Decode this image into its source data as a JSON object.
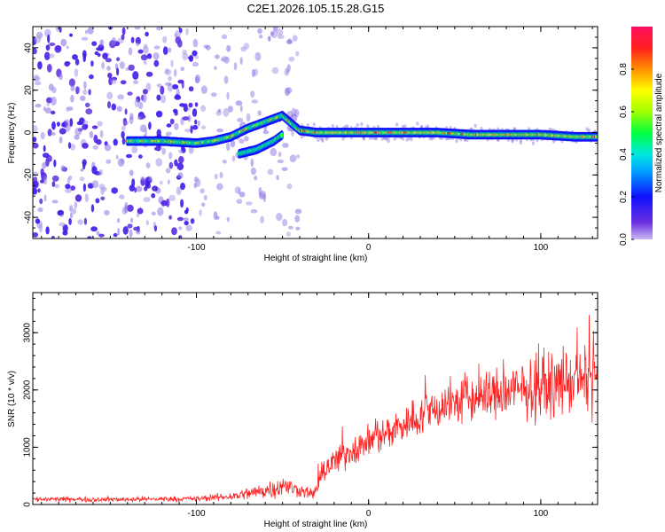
{
  "title": "C2E1.2026.105.15.28.G15",
  "chart_data": [
    {
      "type": "heatmap",
      "xlabel": "Height of straight line (km)",
      "ylabel": "Frequency (Hz)",
      "xlim": [
        -195,
        133
      ],
      "ylim": [
        -50,
        50
      ],
      "xticks": [
        -100,
        0,
        100
      ],
      "yticks": [
        -40,
        -20,
        0,
        20,
        40
      ],
      "colorbar": {
        "label": "Normalized spectral amplitude",
        "range": [
          0,
          1
        ],
        "ticks": [
          0,
          0.2,
          0.4,
          0.6,
          0.8
        ],
        "tick_labels": [
          "0.0",
          "0.2",
          "0.4",
          "0.6",
          "0.8"
        ],
        "colormap": [
          "#b0a0e8",
          "#5020e0",
          "#1010ff",
          "#00c8ff",
          "#00ff60",
          "#a0ff00",
          "#ffff00",
          "#ffa000",
          "#ff2020",
          "#ff1060"
        ]
      },
      "ridge": {
        "x": [
          -140,
          -120,
          -100,
          -90,
          -80,
          -70,
          -60,
          -50,
          -40,
          -30,
          -20,
          0,
          20,
          40,
          60,
          80,
          100,
          120,
          133
        ],
        "y": [
          -4,
          -4,
          -5,
          -4,
          -2,
          2,
          5,
          8,
          1,
          0,
          0,
          0,
          0,
          0,
          -1,
          -1,
          -1,
          -2,
          -2
        ]
      },
      "ridge_secondary": {
        "x": [
          -75,
          -70,
          -65,
          -60,
          -55,
          -50
        ],
        "y": [
          -10,
          -9,
          -8,
          -6,
          -4,
          -1
        ]
      }
    },
    {
      "type": "line",
      "xlabel": "Height of straight line (km)",
      "ylabel": "SNR (10 * v/v)",
      "xlim": [
        -195,
        133
      ],
      "ylim": [
        0,
        3700
      ],
      "xticks": [
        -100,
        0,
        100
      ],
      "yticks": [
        0,
        1000,
        2000,
        3000
      ],
      "color": "#ff2020",
      "envelope_x": [
        -195,
        -150,
        -100,
        -80,
        -60,
        -50,
        -40,
        -32,
        -25,
        -10,
        0,
        20,
        40,
        60,
        80,
        100,
        120,
        133
      ],
      "envelope_mean": [
        90,
        90,
        100,
        140,
        250,
        330,
        250,
        180,
        650,
        950,
        1100,
        1400,
        1700,
        1850,
        1950,
        2050,
        2150,
        2200
      ],
      "envelope_spread": [
        80,
        70,
        80,
        120,
        250,
        330,
        200,
        150,
        400,
        450,
        450,
        550,
        650,
        750,
        800,
        850,
        900,
        900
      ]
    }
  ]
}
